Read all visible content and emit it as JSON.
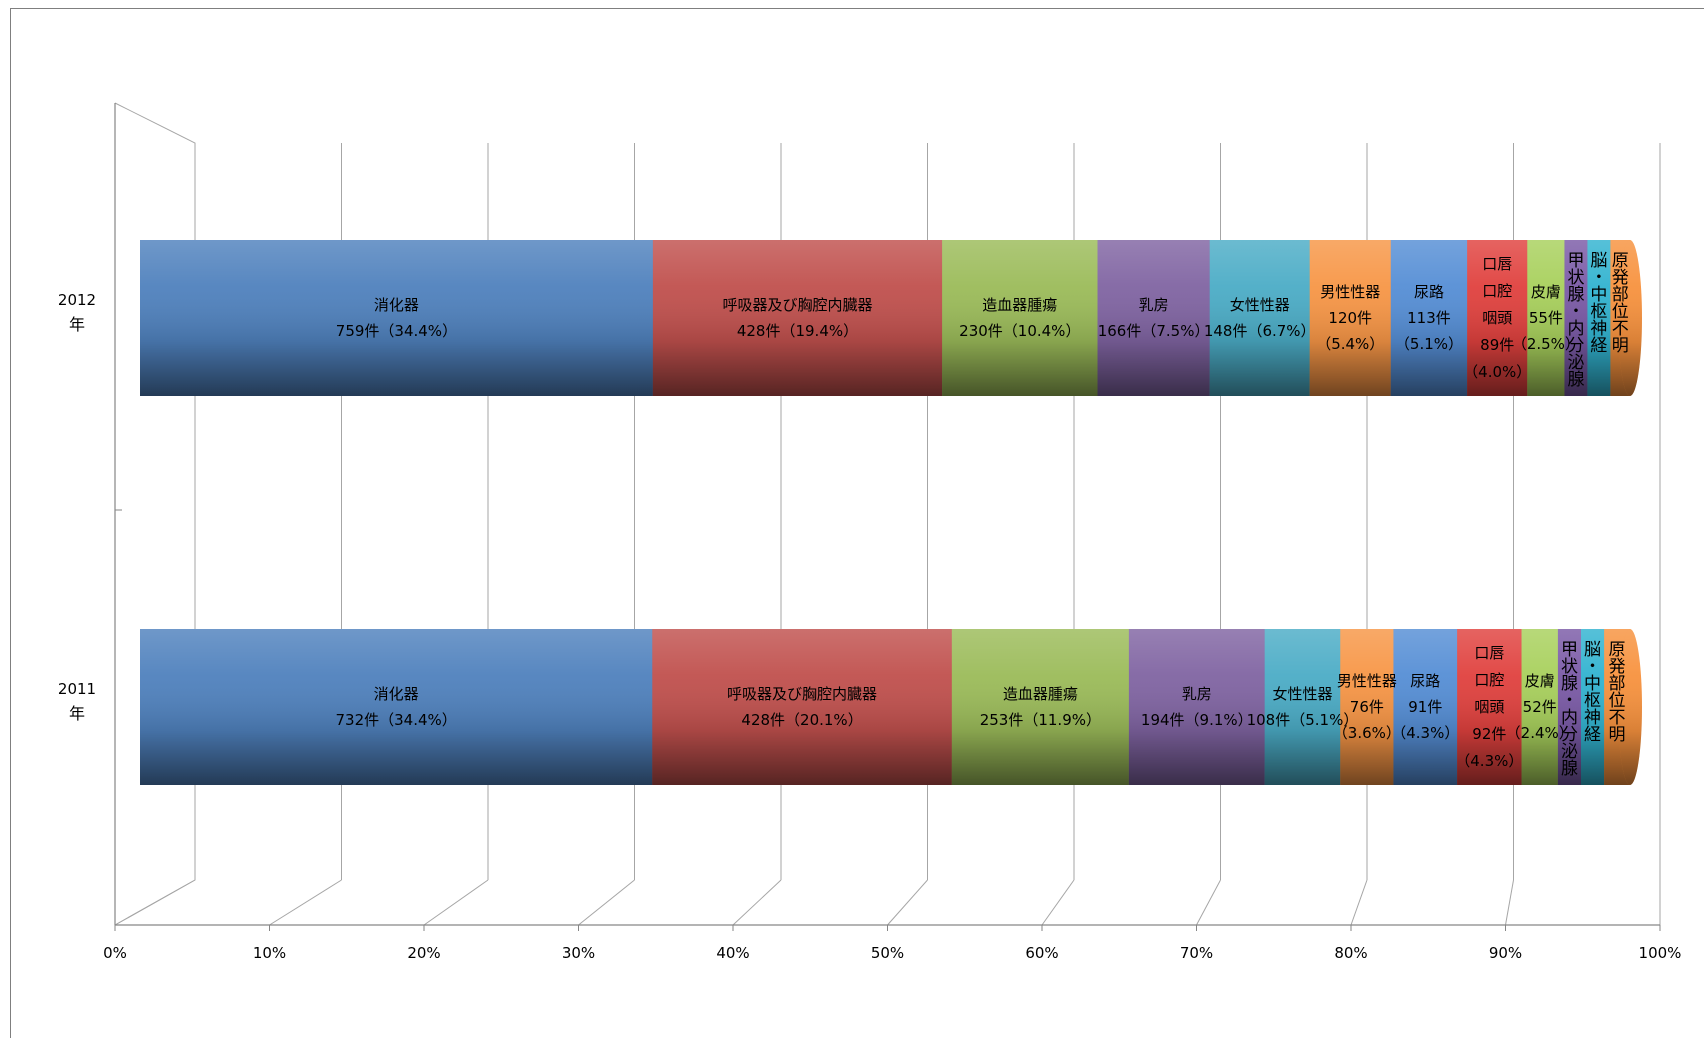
{
  "chart_data": {
    "type": "bar",
    "orientation": "horizontal",
    "stacked": "100%",
    "style": "3d-cylinder",
    "title": "",
    "xlabel": "",
    "ylabel": "",
    "xlim": [
      0,
      100
    ],
    "x_ticks": [
      "0%",
      "10%",
      "20%",
      "30%",
      "40%",
      "50%",
      "60%",
      "70%",
      "80%",
      "90%",
      "100%"
    ],
    "grid": true,
    "legend": "none",
    "categories": [
      {
        "label_line1": "2012",
        "label_line2": "年"
      },
      {
        "label_line1": "2011",
        "label_line2": "年"
      }
    ],
    "series": [
      {
        "name": "消化器",
        "color": "#4f81bd",
        "values": [
          759,
          732
        ],
        "data_labels": [
          [
            "消化器",
            "759件（34.4%）"
          ],
          [
            "消化器",
            "732件（34.4%）"
          ]
        ]
      },
      {
        "name": "呼吸器及び胸腔内臓器",
        "color": "#c0504d",
        "values": [
          428,
          428
        ],
        "data_labels": [
          [
            "呼吸器及び胸腔内臓器",
            "428件（19.4%）"
          ],
          [
            "呼吸器及び胸腔内臓器",
            "428件（20.1%）"
          ]
        ]
      },
      {
        "name": "造血器腫瘍",
        "color": "#9bbb59",
        "values": [
          230,
          253
        ],
        "data_labels": [
          [
            "造血器腫瘍",
            "230件（10.4%）"
          ],
          [
            "造血器腫瘍",
            "253件（11.9%）"
          ]
        ]
      },
      {
        "name": "乳房",
        "color": "#8064a2",
        "values": [
          166,
          194
        ],
        "data_labels": [
          [
            "乳房",
            "166件（7.5%）"
          ],
          [
            "乳房",
            "194件（9.1%）"
          ]
        ]
      },
      {
        "name": "女性性器",
        "color": "#4bacc6",
        "values": [
          148,
          108
        ],
        "data_labels": [
          [
            "女性性器",
            "148件（6.7%）"
          ],
          [
            "女性性器",
            "108件（5.1%）"
          ]
        ]
      },
      {
        "name": "男性性器",
        "color": "#f79646",
        "values": [
          120,
          76
        ],
        "data_labels": [
          [
            "男性性器",
            "120件",
            "（5.4%）"
          ],
          [
            "男性性器",
            "76件",
            "（3.6%）"
          ]
        ]
      },
      {
        "name": "尿路",
        "color": "#558ed5",
        "values": [
          113,
          91
        ],
        "data_labels": [
          [
            "尿路",
            "113件",
            "（5.1%）"
          ],
          [
            "尿路",
            "91件",
            "（4.3%）"
          ]
        ]
      },
      {
        "name": "口唇口腔咽頭",
        "color": "#e0413e",
        "values": [
          89,
          92
        ],
        "data_labels": [
          [
            "口唇",
            "口腔",
            "咽頭",
            "89件",
            "（4.0%）"
          ],
          [
            "口唇",
            "口腔",
            "咽頭",
            "92件",
            "（4.3%）"
          ]
        ]
      },
      {
        "name": "皮膚",
        "color": "#a8d05c",
        "values": [
          55,
          52
        ],
        "data_labels": [
          [
            "皮膚",
            "55件",
            "（2.5%）"
          ],
          [
            "皮膚",
            "52件",
            "（2.4%）"
          ]
        ]
      },
      {
        "name": "甲状腺・内分泌腺",
        "color": "#7a5aa6",
        "values": [
          34,
          33
        ],
        "data_labels": [
          [
            "甲状腺・内分泌腺"
          ],
          [
            "甲状腺・内分泌腺"
          ]
        ]
      },
      {
        "name": "脳・中枢神経",
        "color": "#31b3d0",
        "values": [
          34,
          33
        ],
        "data_labels": [
          [
            "脳・中枢神経"
          ],
          [
            "脳・中枢神経"
          ]
        ]
      },
      {
        "name": "原発部位不明",
        "color": "#f7923e",
        "values": [
          29,
          37
        ],
        "data_labels": [
          [
            "原発部位不明"
          ],
          [
            "原発部位不明"
          ]
        ]
      }
    ]
  }
}
